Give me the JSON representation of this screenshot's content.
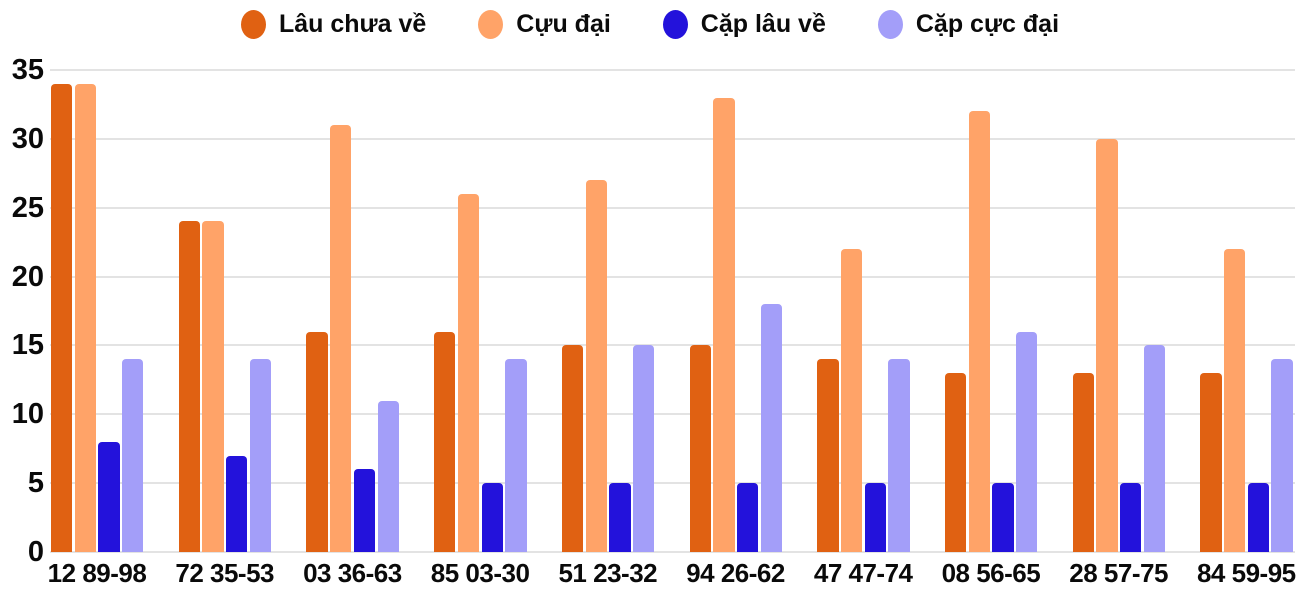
{
  "chart_data": {
    "type": "bar",
    "title": "",
    "xlabel": "",
    "ylabel": "",
    "categories": [
      "12 89-98",
      "72 35-53",
      "03 36-63",
      "85 03-30",
      "51 23-32",
      "94 26-62",
      "47 47-74",
      "08 56-65",
      "28 57-75",
      "84 59-95"
    ],
    "series": [
      {
        "name": "Lâu chưa về",
        "color": "#e06112",
        "values": [
          34,
          24,
          16,
          16,
          15,
          15,
          14,
          13,
          13,
          13
        ]
      },
      {
        "name": "Cựu đại",
        "color": "#ffa368",
        "values": [
          34,
          24,
          31,
          26,
          27,
          33,
          22,
          32,
          30,
          22
        ]
      },
      {
        "name": "Cặp lâu về",
        "color": "#2312db",
        "values": [
          8,
          7,
          6,
          5,
          5,
          5,
          5,
          5,
          5,
          5
        ]
      },
      {
        "name": "Cặp cực đại",
        "color": "#a39ef9",
        "values": [
          14,
          14,
          11,
          14,
          15,
          18,
          14,
          16,
          15,
          14
        ]
      }
    ],
    "ylim": [
      0,
      35
    ],
    "yticks": [
      0,
      5,
      10,
      15,
      20,
      25,
      30,
      35
    ],
    "grid": "horizontal",
    "legend_position": "top"
  },
  "colors": {
    "background": "#ffffff",
    "gridline": "#e3e3e3",
    "text": "#0a0a0a"
  }
}
